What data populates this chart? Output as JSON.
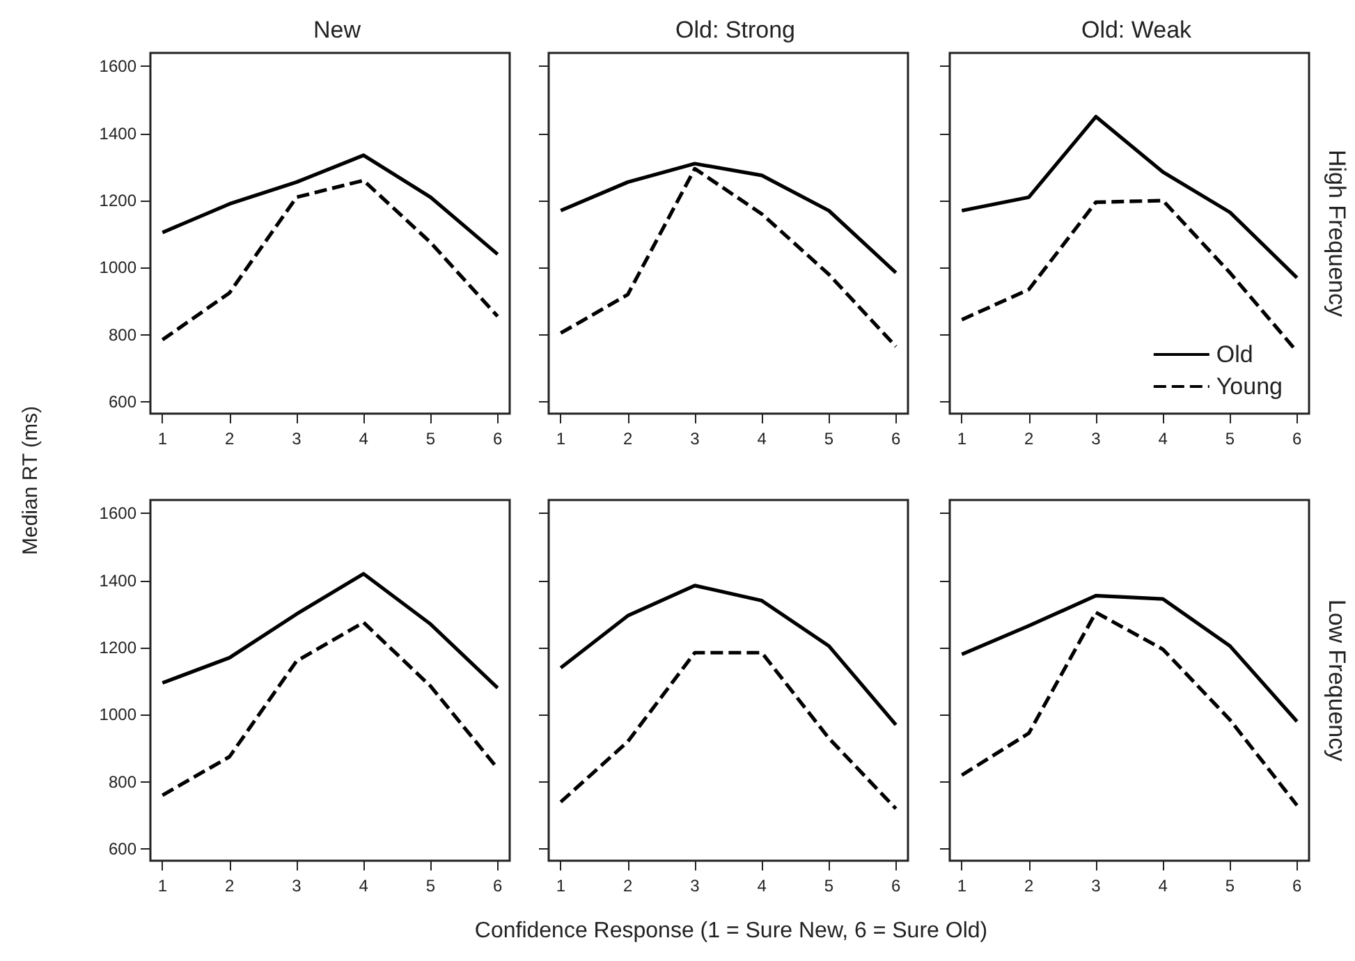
{
  "chart_data": [
    {
      "type": "line",
      "title": "New",
      "ylabel": "Median RT (ms)",
      "x": [
        1,
        2,
        3,
        4,
        5,
        6
      ],
      "xlim": [
        0.82,
        6.18
      ],
      "xticks": [
        1,
        2,
        3,
        4,
        5,
        6
      ],
      "ylim": [
        565,
        1640
      ],
      "yticks": [
        600,
        800,
        1000,
        1200,
        1400,
        1600
      ],
      "grid": false,
      "marker": "none",
      "series": [
        {
          "color": "#000000",
          "line_style": "solid",
          "values": [
            1105,
            1190,
            1255,
            1335,
            1210,
            1040
          ]
        },
        {
          "color": "#000000",
          "line_style": "dashed",
          "values": [
            785,
            925,
            1210,
            1260,
            1075,
            855
          ]
        }
      ]
    },
    {
      "type": "line",
      "title": "Old: Strong",
      "x": [
        1,
        2,
        3,
        4,
        5,
        6
      ],
      "xlim": [
        0.82,
        6.18
      ],
      "xticks": [
        1,
        2,
        3,
        4,
        5,
        6
      ],
      "ylim": [
        565,
        1640
      ],
      "yticks": [
        600,
        800,
        1000,
        1200,
        1400,
        1600
      ],
      "tick_labels": "x",
      "grid": false,
      "marker": "none",
      "series": [
        {
          "color": "#000000",
          "line_style": "solid",
          "values": [
            1170,
            1255,
            1310,
            1275,
            1170,
            985
          ]
        },
        {
          "color": "#000000",
          "line_style": "dashed",
          "values": [
            805,
            920,
            1295,
            1160,
            980,
            765
          ]
        }
      ]
    },
    {
      "type": "line",
      "title": "Old: Weak",
      "annotations": [
        "High Frequency"
      ],
      "x": [
        1,
        2,
        3,
        4,
        5,
        6
      ],
      "xlim": [
        0.82,
        6.18
      ],
      "xticks": [
        1,
        2,
        3,
        4,
        5,
        6
      ],
      "ylim": [
        565,
        1640
      ],
      "yticks": [
        600,
        800,
        1000,
        1200,
        1400,
        1600
      ],
      "tick_labels": "x",
      "grid": false,
      "marker": "none",
      "legend": "bottom right",
      "series": [
        {
          "name": "Old",
          "color": "#000000",
          "line_style": "solid",
          "values": [
            1170,
            1210,
            1450,
            1285,
            1165,
            970
          ]
        },
        {
          "name": "Young",
          "color": "#000000",
          "line_style": "dashed",
          "values": [
            845,
            935,
            1195,
            1200,
            985,
            750
          ]
        }
      ]
    },
    {
      "type": "line",
      "x": [
        1,
        2,
        3,
        4,
        5,
        6
      ],
      "xlim": [
        0.82,
        6.18
      ],
      "xticks": [
        1,
        2,
        3,
        4,
        5,
        6
      ],
      "ylim": [
        565,
        1640
      ],
      "yticks": [
        600,
        800,
        1000,
        1200,
        1400,
        1600
      ],
      "grid": false,
      "marker": "none",
      "series": [
        {
          "color": "#000000",
          "line_style": "solid",
          "values": [
            1095,
            1170,
            1300,
            1420,
            1270,
            1080
          ]
        },
        {
          "color": "#000000",
          "line_style": "dashed",
          "values": [
            760,
            875,
            1160,
            1275,
            1085,
            840
          ]
        }
      ]
    },
    {
      "type": "line",
      "xlabel": "Confidence Response (1 = Sure New, 6 = Sure Old)",
      "x": [
        1,
        2,
        3,
        4,
        5,
        6
      ],
      "xlim": [
        0.82,
        6.18
      ],
      "xticks": [
        1,
        2,
        3,
        4,
        5,
        6
      ],
      "ylim": [
        565,
        1640
      ],
      "yticks": [
        600,
        800,
        1000,
        1200,
        1400,
        1600
      ],
      "tick_labels": "x",
      "grid": false,
      "marker": "none",
      "series": [
        {
          "color": "#000000",
          "line_style": "solid",
          "values": [
            1140,
            1295,
            1385,
            1340,
            1205,
            970
          ]
        },
        {
          "color": "#000000",
          "line_style": "dashed",
          "values": [
            740,
            920,
            1185,
            1185,
            930,
            720
          ]
        }
      ]
    },
    {
      "type": "line",
      "annotations": [
        "Low Frequency"
      ],
      "x": [
        1,
        2,
        3,
        4,
        5,
        6
      ],
      "xlim": [
        0.82,
        6.18
      ],
      "xticks": [
        1,
        2,
        3,
        4,
        5,
        6
      ],
      "ylim": [
        565,
        1640
      ],
      "yticks": [
        600,
        800,
        1000,
        1200,
        1400,
        1600
      ],
      "tick_labels": "x",
      "grid": false,
      "marker": "none",
      "series": [
        {
          "color": "#000000",
          "line_style": "solid",
          "values": [
            1180,
            1265,
            1355,
            1345,
            1205,
            980
          ]
        },
        {
          "color": "#000000",
          "line_style": "dashed",
          "values": [
            820,
            945,
            1305,
            1195,
            985,
            730
          ]
        }
      ]
    }
  ]
}
